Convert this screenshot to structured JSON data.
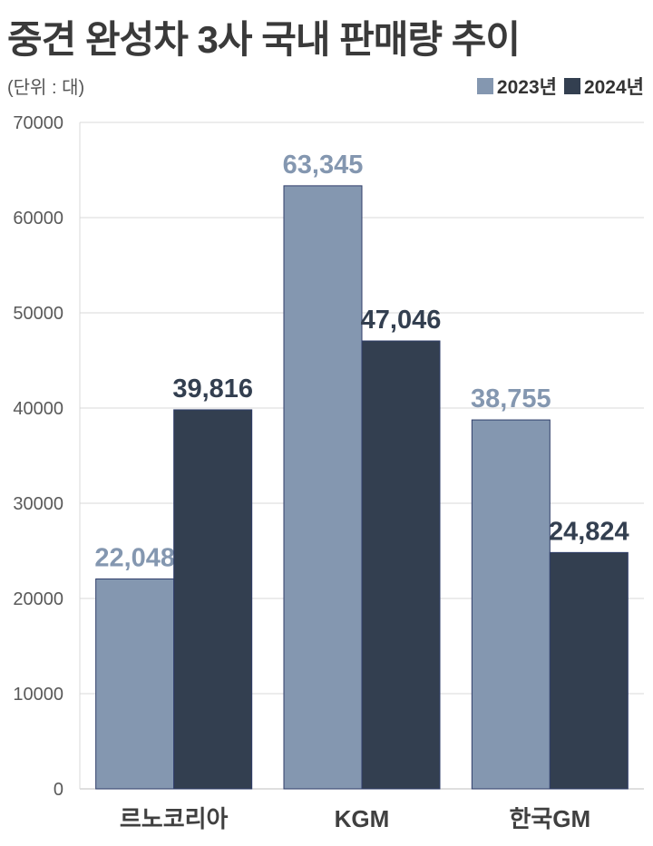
{
  "title": "중견 완성차 3사 국내 판매량 추이",
  "unit_label": "(단위 : 대)",
  "colors": {
    "series_2023": "#8497b0",
    "series_2024": "#333f50",
    "grid": "#d9d9d9"
  },
  "chart_data": {
    "type": "bar",
    "title": "중견 완성차 3사 국내 판매량 추이",
    "categories": [
      "르노코리아",
      "KGM",
      "한국GM"
    ],
    "series": [
      {
        "name": "2023년",
        "values": [
          22048,
          63345,
          38755
        ],
        "labels": [
          "22,048",
          "63,345",
          "38,755"
        ]
      },
      {
        "name": "2024년",
        "values": [
          39816,
          47046,
          24824
        ],
        "labels": [
          "39,816",
          "47,046",
          "24,824"
        ]
      }
    ],
    "yticks": [
      "0",
      "10000",
      "20000",
      "30000",
      "40000",
      "50000",
      "60000",
      "70000"
    ],
    "ylim": [
      0,
      70000
    ],
    "grid": true,
    "legend": "top-right"
  }
}
